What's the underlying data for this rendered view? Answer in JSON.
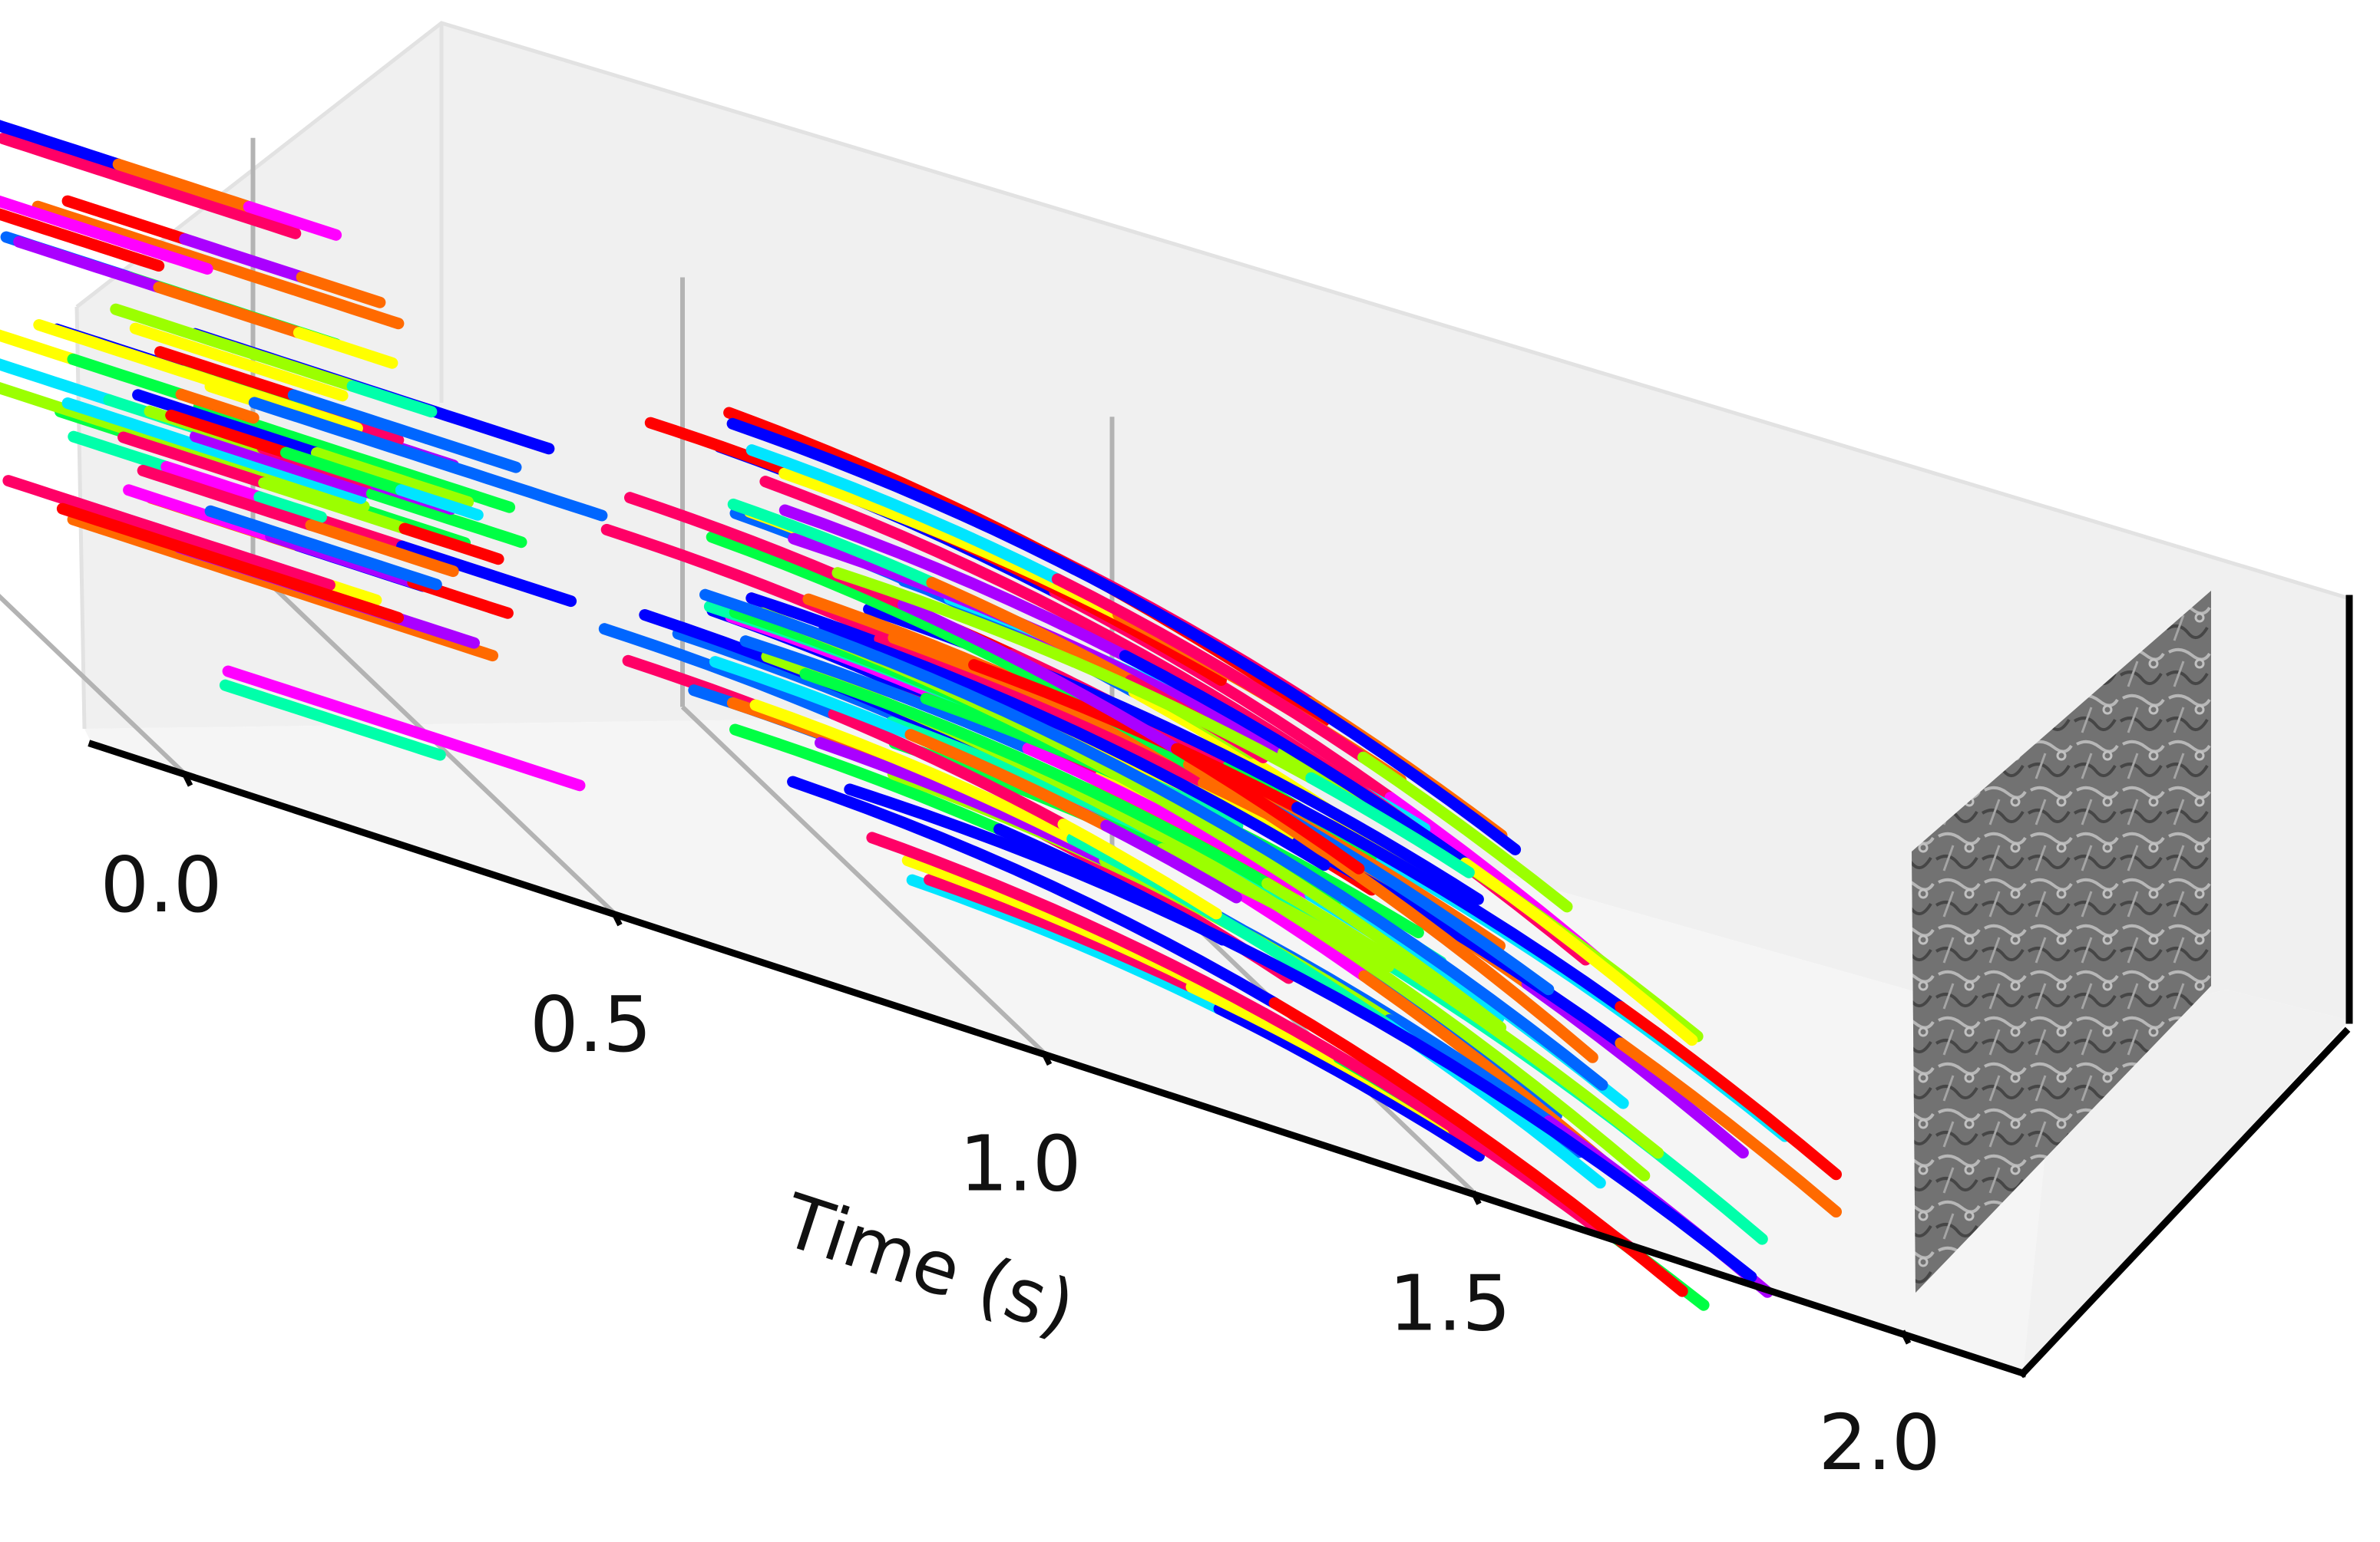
{
  "chart_data": {
    "type": "scatter",
    "projection": "3d",
    "xlabel": "Time (s)",
    "ylabel": "",
    "zlabel": "",
    "xlim": [
      0.0,
      2.0
    ],
    "x_ticks": [
      "0.0",
      "0.5",
      "1.0",
      "1.5",
      "2.0"
    ],
    "grid": true,
    "legend": "none",
    "groups": [
      {
        "name": "",
        "time_range": [
          0.05,
          0.55
        ],
        "trajectory_count": 40,
        "shape": "near-linear horizontal tracks"
      },
      {
        "name": "",
        "time_range": [
          0.85,
          2.0
        ],
        "trajectory_count": 60,
        "shape": "tracks curving downward as time increases"
      }
    ],
    "end_image": {
      "at_time": 2.0,
      "style": "grayscale event frame"
    },
    "series_colors": [
      "#ff0000",
      "#ff00ff",
      "#0000ff",
      "#00e5ff",
      "#00ff44",
      "#9bff00",
      "#ffff00",
      "#ff6a00",
      "#ff0066",
      "#aa00ff",
      "#0066ff",
      "#00ffaa"
    ]
  }
}
